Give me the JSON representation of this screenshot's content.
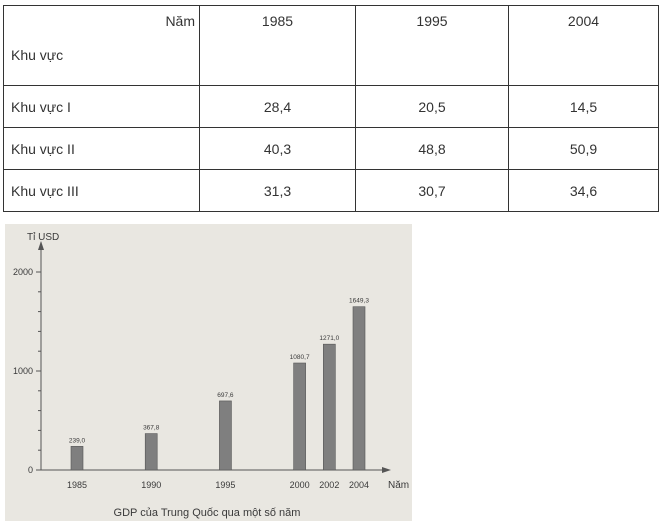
{
  "table": {
    "header_corner_top": "Năm",
    "header_corner_bottom": "Khu vực",
    "years": [
      "1985",
      "1995",
      "2004"
    ],
    "rows": [
      {
        "label": "Khu vực I",
        "values": [
          "28,4",
          "20,5",
          "14,5"
        ]
      },
      {
        "label": "Khu vực II",
        "values": [
          "40,3",
          "48,8",
          "50,9"
        ]
      },
      {
        "label": "Khu vực III",
        "values": [
          "31,3",
          "30,7",
          "34,6"
        ]
      }
    ]
  },
  "chart_data": {
    "type": "bar",
    "title": "GDP của Trung Quốc qua một số năm",
    "ylabel": "Tỉ USD",
    "xlabel": "Năm",
    "ylim": [
      0,
      2000
    ],
    "yticks": [
      "0",
      "1000",
      "2000"
    ],
    "categories": [
      "1985",
      "1990",
      "1995",
      "2000",
      "2002",
      "2004"
    ],
    "values": [
      239.0,
      367.8,
      697.6,
      1080.7,
      1271.0,
      1649.3
    ],
    "value_labels": [
      "239,0",
      "367,8",
      "697,6",
      "1080,7",
      "1271,0",
      "1649,3"
    ],
    "bar_color": "#7f7f7f"
  }
}
